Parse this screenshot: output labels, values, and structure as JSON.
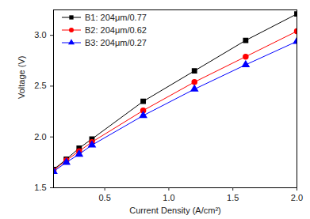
{
  "chart_data": {
    "type": "line",
    "x_label": "Current Density (A/cm²)",
    "y_label": "Voltage (V)",
    "x": [
      0.1,
      0.2,
      0.3,
      0.4,
      0.8,
      1.2,
      1.6,
      2.0
    ],
    "series": [
      {
        "name": "B1: 204μm/0.77",
        "color": "#000000",
        "marker": "square",
        "values": [
          1.68,
          1.78,
          1.89,
          1.98,
          2.35,
          2.65,
          2.95,
          3.21
        ]
      },
      {
        "name": "B2: 204μm/0.62",
        "color": "#ff0000",
        "marker": "circle",
        "values": [
          1.67,
          1.77,
          1.86,
          1.95,
          2.26,
          2.54,
          2.79,
          3.04
        ]
      },
      {
        "name": "B3: 204μm/0.27",
        "color": "#0000ff",
        "marker": "triangle",
        "values": [
          1.66,
          1.75,
          1.83,
          1.92,
          2.21,
          2.47,
          2.71,
          2.94
        ]
      }
    ],
    "xlim": [
      0.1,
      2.0
    ],
    "ylim": [
      1.5,
      3.25
    ],
    "xticks": [
      0.5,
      {
        "value": 1,
        "label": "1.0"
      },
      1.5,
      {
        "value": 2,
        "label": "2.0"
      }
    ],
    "yticks": [
      1.5,
      {
        "value": 2,
        "label": "2.0"
      },
      2.5,
      {
        "value": 3,
        "label": "3.0"
      }
    ],
    "legend": "top-left",
    "grid": false
  }
}
